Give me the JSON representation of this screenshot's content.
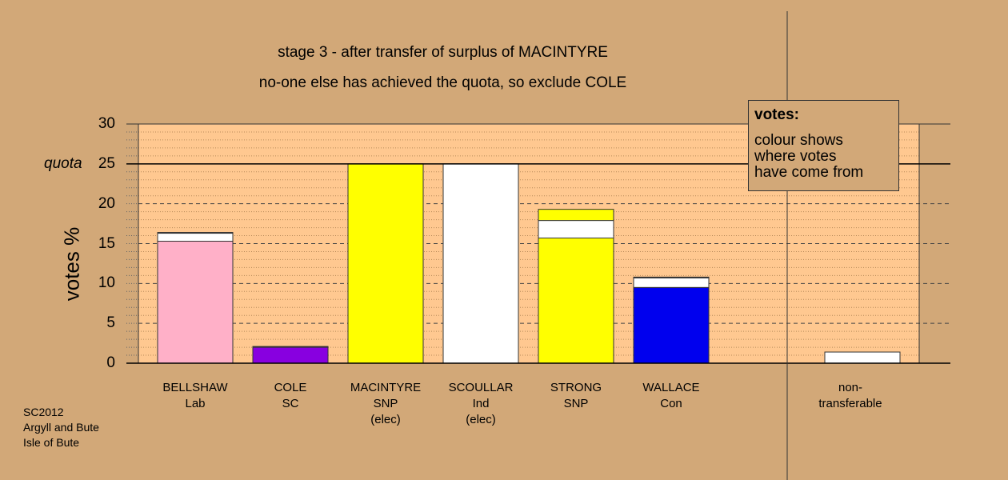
{
  "title_lines": [
    "stage 3 - after transfer of surplus of MACINTYRE",
    "no-one else has achieved the quota, so exclude COLE"
  ],
  "legend": {
    "heading": "votes:",
    "lines": [
      "colour shows",
      "where votes",
      "have come from"
    ]
  },
  "footer": [
    "SC2012",
    "Argyll and Bute",
    "Isle of Bute"
  ],
  "chart_data": {
    "type": "bar",
    "ylabel": "votes %",
    "ylim": [
      0,
      30
    ],
    "yticks": [
      "0",
      "5",
      "10",
      "15",
      "20",
      "25",
      "30"
    ],
    "quota_label": "quota",
    "quota_value": 25,
    "categories": [
      {
        "name": "BELLSHAW",
        "party": "Lab",
        "note": ""
      },
      {
        "name": "COLE",
        "party": "SC",
        "note": ""
      },
      {
        "name": "MACINTYRE",
        "party": "SNP",
        "note": "(elec)"
      },
      {
        "name": "SCOULLAR",
        "party": "Ind",
        "note": "(elec)"
      },
      {
        "name": "STRONG",
        "party": "SNP",
        "note": ""
      },
      {
        "name": "WALLACE",
        "party": "Con",
        "note": ""
      }
    ],
    "nontransferable_label": [
      "non-",
      "transferable"
    ],
    "bars": [
      {
        "segments": [
          {
            "value": 15.3,
            "color": "#ffb0c8"
          },
          {
            "value": 1.0,
            "color": "#ffffff"
          },
          {
            "value": 0.1,
            "color": "#ffff00"
          }
        ]
      },
      {
        "segments": [
          {
            "value": 2.0,
            "color": "#8800e0"
          },
          {
            "value": 0.1,
            "color": "#ffffff"
          }
        ]
      },
      {
        "segments": [
          {
            "value": 25.0,
            "color": "#ffff00"
          }
        ]
      },
      {
        "segments": [
          {
            "value": 25.0,
            "color": "#ffffff"
          }
        ]
      },
      {
        "segments": [
          {
            "value": 15.7,
            "color": "#ffff00"
          },
          {
            "value": 2.2,
            "color": "#ffffff"
          },
          {
            "value": 1.4,
            "color": "#ffff00"
          }
        ]
      },
      {
        "segments": [
          {
            "value": 9.5,
            "color": "#0000ee"
          },
          {
            "value": 1.2,
            "color": "#ffffff"
          },
          {
            "value": 0.1,
            "color": "#ffff00"
          }
        ]
      },
      {
        "segments": [
          {
            "value": 1.4,
            "color": "#ffffff"
          }
        ]
      }
    ]
  }
}
